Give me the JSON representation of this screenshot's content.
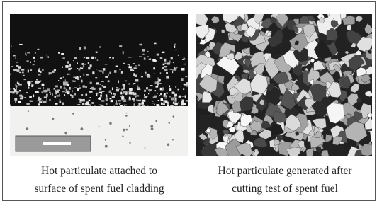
{
  "figure": {
    "panels": [
      {
        "caption_lines": [
          "Hot particulate attached to",
          "surface of spent fuel cladding"
        ]
      },
      {
        "caption_lines": [
          "Hot particulate generated after",
          "cutting test of spent fuel"
        ]
      }
    ]
  }
}
